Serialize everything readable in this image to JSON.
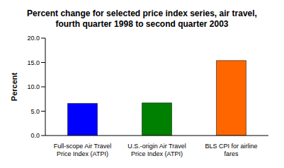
{
  "chart_data": {
    "type": "bar",
    "title": "Percent change for selected price index series, air travel, fourth quarter 1998 to second quarter 2003",
    "y_label": "Percent",
    "categories": [
      "Full-scope Air Travel Price Index (ATPI)",
      "U.S.-origin Air Travel Price Index (ATPI)",
      "BLS CPI for airline fares"
    ],
    "values": [
      6.6,
      6.7,
      15.4
    ],
    "colors": [
      "#0000ff",
      "#008000",
      "#ff6600"
    ],
    "ylim": [
      0,
      20
    ],
    "yticks": [
      {
        "value": 0,
        "label": "0.0"
      },
      {
        "value": 5,
        "label": "5.0"
      },
      {
        "value": 10,
        "label": "10.0"
      },
      {
        "value": 15,
        "label": "15.0"
      },
      {
        "value": 20,
        "label": "20.0"
      }
    ],
    "grid": false
  }
}
